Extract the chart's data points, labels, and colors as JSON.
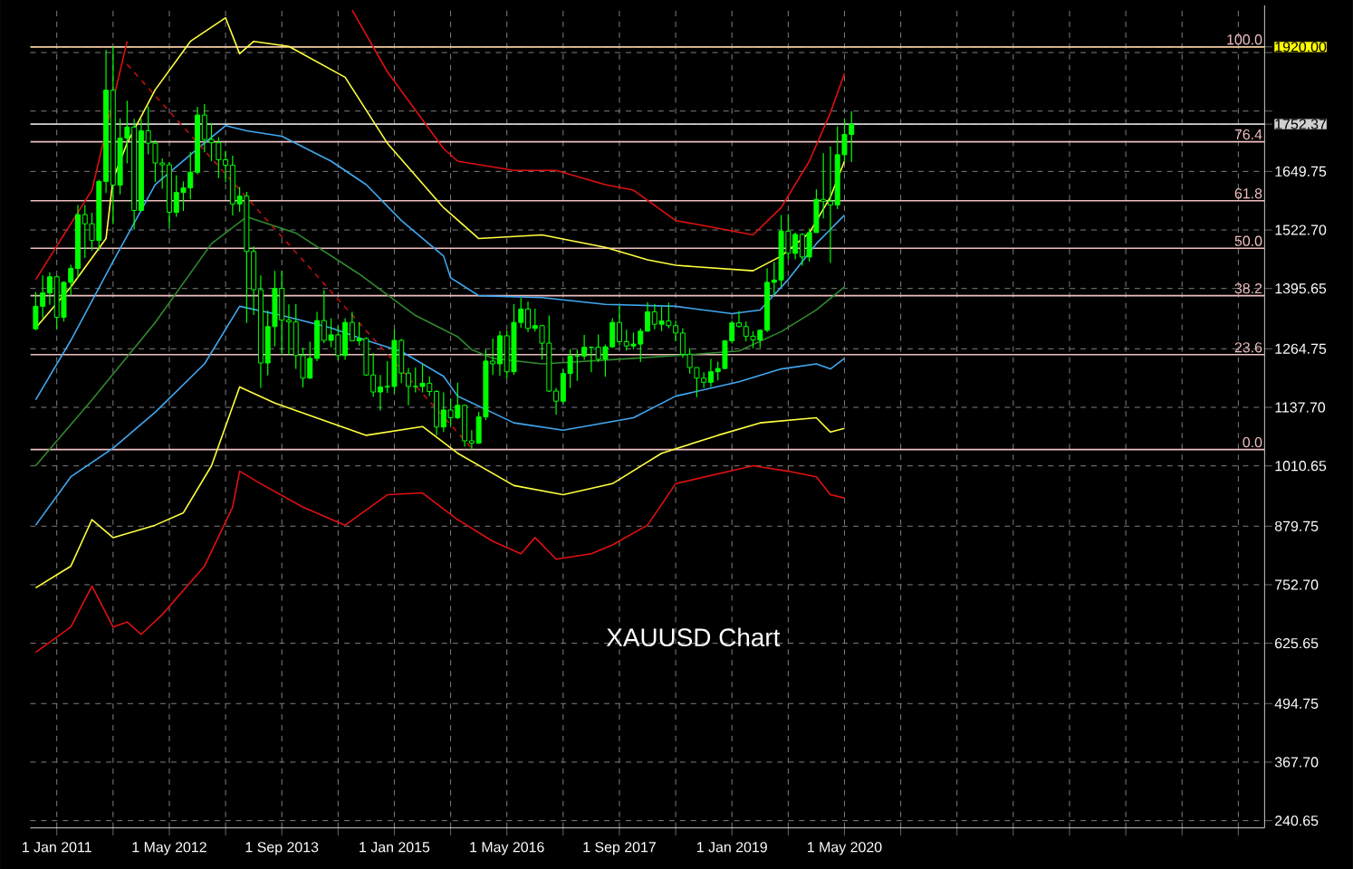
{
  "chart_data": {
    "type": "candlestick",
    "color": "#00ff00",
    "grid": true,
    "annotations": [
      "XAUUSD Chart",
      {
        "text": "100.0",
        "x": "2025-04-23",
        "y": 1920
      },
      {
        "text": "76.4",
        "x": "2025-04-23",
        "y": 1714
      },
      {
        "text": "61.8",
        "x": "2025-04-23",
        "y": 1586
      },
      {
        "text": "50.0",
        "x": "2025-04-23",
        "y": 1483
      },
      {
        "text": "38.2",
        "x": "2025-04-23",
        "y": 1380
      },
      {
        "text": "23.6",
        "x": "2025-04-23",
        "y": 1252
      },
      {
        "text": "0.0",
        "x": "2025-04-23",
        "y": 1046
      }
    ],
    "xlim": [
      "2010-09-08",
      "2025-04-23"
    ],
    "ylim": [
      225,
      2010
    ],
    "xticks": [
      {
        "value": "2011-01-01",
        "label": "1 Jan 2011"
      },
      {
        "value": "2011-09-01",
        "label": null
      },
      {
        "value": "2012-05-01",
        "label": "1 May 2012"
      },
      {
        "value": "2013-01-01",
        "label": null
      },
      {
        "value": "2013-09-01",
        "label": "1 Sep 2013"
      },
      {
        "value": "2014-05-01",
        "label": null
      },
      {
        "value": "2015-01-01",
        "label": "1 Jan 2015"
      },
      {
        "value": "2015-09-01",
        "label": null
      },
      {
        "value": "2016-05-01",
        "label": "1 May 2016"
      },
      {
        "value": "2017-01-01",
        "label": null
      },
      {
        "value": "2017-09-01",
        "label": "1 Sep 2017"
      },
      {
        "value": "2018-05-01",
        "label": null
      },
      {
        "value": "2019-01-01",
        "label": "1 Jan 2019"
      },
      {
        "value": "2019-09-01",
        "label": null
      },
      {
        "value": "2020-05-01",
        "label": "1 May 2020"
      },
      {
        "value": "2021-01-01",
        "label": null
      },
      {
        "value": "2021-09-01",
        "label": null
      },
      {
        "value": "2022-05-01",
        "label": null
      },
      {
        "value": "2023-01-01",
        "label": null
      },
      {
        "value": "2023-09-01",
        "label": null
      },
      {
        "value": "2024-05-01",
        "label": null
      },
      {
        "value": "2025-01-01",
        "label": null
      }
    ],
    "yticks": [
      {
        "value": 240.65,
        "label": "240.65"
      },
      {
        "value": 367.7,
        "label": "367.70"
      },
      {
        "value": 494.75,
        "label": "494.75"
      },
      {
        "value": 625.65,
        "label": "625.65"
      },
      {
        "value": 752.7,
        "label": "752.70"
      },
      {
        "value": 879.75,
        "label": "879.75"
      },
      {
        "value": 1010.65,
        "label": "1010.65"
      },
      {
        "value": 1137.7,
        "label": "1137.70"
      },
      {
        "value": 1264.75,
        "label": "1264.75"
      },
      {
        "value": 1395.65,
        "label": "1395.65"
      },
      {
        "value": 1522.7,
        "label": "1522.70"
      },
      {
        "value": 1649.75,
        "label": "1649.75"
      },
      {
        "value": 1752.37,
        "label": "1752.37"
      },
      {
        "value": 1780.65,
        "label": null
      },
      {
        "value": 1907.7,
        "label": null
      },
      {
        "value": 1920,
        "label": "1920.00"
      }
    ],
    "ref_lines": [
      {
        "axis": "y",
        "value": 1920,
        "label": null,
        "color": "#ffff00"
      },
      {
        "axis": "y",
        "value": 1752.37,
        "label": null,
        "color": "#d0d0d0"
      },
      {
        "axis": "y",
        "value": 1920,
        "color": "#f0c0c0"
      },
      {
        "axis": "y",
        "value": 1714,
        "color": "#f0c0c0"
      },
      {
        "axis": "y",
        "value": 1586,
        "color": "#f0c0c0"
      },
      {
        "axis": "y",
        "value": 1483,
        "color": "#f0c0c0"
      },
      {
        "axis": "y",
        "value": 1380,
        "color": "#f0c0c0"
      },
      {
        "axis": "y",
        "value": 1252,
        "color": "#f0c0c0"
      },
      {
        "axis": "y",
        "value": 1046,
        "color": "#f0c0c0"
      }
    ],
    "x": [
      "2010-10",
      "2010-11",
      "2010-12",
      "2011-01",
      "2011-02",
      "2011-03",
      "2011-04",
      "2011-05",
      "2011-06",
      "2011-07",
      "2011-08",
      "2011-09",
      "2011-10",
      "2011-11",
      "2011-12",
      "2012-01",
      "2012-02",
      "2012-03",
      "2012-04",
      "2012-05",
      "2012-06",
      "2012-07",
      "2012-08",
      "2012-09",
      "2012-10",
      "2012-11",
      "2012-12",
      "2013-01",
      "2013-02",
      "2013-03",
      "2013-04",
      "2013-05",
      "2013-06",
      "2013-07",
      "2013-08",
      "2013-09",
      "2013-10",
      "2013-11",
      "2013-12",
      "2014-01",
      "2014-02",
      "2014-03",
      "2014-04",
      "2014-05",
      "2014-06",
      "2014-07",
      "2014-08",
      "2014-09",
      "2014-10",
      "2014-11",
      "2014-12",
      "2015-01",
      "2015-02",
      "2015-03",
      "2015-04",
      "2015-05",
      "2015-06",
      "2015-07",
      "2015-08",
      "2015-09",
      "2015-10",
      "2015-11",
      "2015-12",
      "2016-01",
      "2016-02",
      "2016-03",
      "2016-04",
      "2016-05",
      "2016-06",
      "2016-07",
      "2016-08",
      "2016-09",
      "2016-10",
      "2016-11",
      "2016-12",
      "2017-01",
      "2017-02",
      "2017-03",
      "2017-04",
      "2017-05",
      "2017-06",
      "2017-07",
      "2017-08",
      "2017-09",
      "2017-10",
      "2017-11",
      "2017-12",
      "2018-01",
      "2018-02",
      "2018-03",
      "2018-04",
      "2018-05",
      "2018-06",
      "2018-07",
      "2018-08",
      "2018-09",
      "2018-10",
      "2018-11",
      "2018-12",
      "2019-01",
      "2019-02",
      "2019-03",
      "2019-04",
      "2019-05",
      "2019-06",
      "2019-07",
      "2019-08",
      "2019-09",
      "2019-10",
      "2019-11",
      "2019-12",
      "2020-01",
      "2020-02",
      "2020-03",
      "2020-04",
      "2020-05",
      "2020-06"
    ],
    "ohlc": [
      [
        1308,
        1388,
        1305,
        1357
      ],
      [
        1357,
        1424,
        1331,
        1386
      ],
      [
        1386,
        1431,
        1360,
        1421
      ],
      [
        1421,
        1424,
        1308,
        1333
      ],
      [
        1333,
        1411,
        1324,
        1409
      ],
      [
        1409,
        1447,
        1381,
        1439
      ],
      [
        1439,
        1577,
        1418,
        1556
      ],
      [
        1556,
        1577,
        1462,
        1536
      ],
      [
        1536,
        1560,
        1478,
        1500
      ],
      [
        1500,
        1632,
        1478,
        1628
      ],
      [
        1628,
        1913,
        1603,
        1826
      ],
      [
        1826,
        1921,
        1535,
        1620
      ],
      [
        1620,
        1765,
        1600,
        1722
      ],
      [
        1722,
        1803,
        1667,
        1746
      ],
      [
        1746,
        1764,
        1523,
        1565
      ],
      [
        1565,
        1764,
        1563,
        1738
      ],
      [
        1738,
        1791,
        1687,
        1711
      ],
      [
        1711,
        1718,
        1627,
        1668
      ],
      [
        1668,
        1678,
        1612,
        1664
      ],
      [
        1664,
        1670,
        1527,
        1561
      ],
      [
        1561,
        1641,
        1551,
        1604
      ],
      [
        1604,
        1628,
        1564,
        1614
      ],
      [
        1614,
        1692,
        1589,
        1648
      ],
      [
        1648,
        1790,
        1643,
        1772
      ],
      [
        1772,
        1796,
        1691,
        1719
      ],
      [
        1719,
        1755,
        1672,
        1712
      ],
      [
        1712,
        1724,
        1635,
        1675
      ],
      [
        1675,
        1694,
        1626,
        1663
      ],
      [
        1663,
        1684,
        1554,
        1579
      ],
      [
        1579,
        1616,
        1562,
        1596
      ],
      [
        1596,
        1605,
        1321,
        1476
      ],
      [
        1476,
        1487,
        1338,
        1393
      ],
      [
        1393,
        1424,
        1180,
        1234
      ],
      [
        1234,
        1348,
        1207,
        1313
      ],
      [
        1313,
        1434,
        1270,
        1396
      ],
      [
        1396,
        1434,
        1251,
        1327
      ],
      [
        1327,
        1361,
        1251,
        1323
      ],
      [
        1323,
        1362,
        1221,
        1250
      ],
      [
        1250,
        1267,
        1181,
        1201
      ],
      [
        1201,
        1280,
        1200,
        1244
      ],
      [
        1244,
        1345,
        1238,
        1326
      ],
      [
        1326,
        1392,
        1277,
        1283
      ],
      [
        1283,
        1331,
        1268,
        1295
      ],
      [
        1295,
        1315,
        1240,
        1250
      ],
      [
        1250,
        1331,
        1241,
        1322
      ],
      [
        1322,
        1345,
        1282,
        1282
      ],
      [
        1282,
        1322,
        1272,
        1287
      ],
      [
        1287,
        1290,
        1206,
        1208
      ],
      [
        1208,
        1255,
        1161,
        1171
      ],
      [
        1171,
        1208,
        1131,
        1182
      ],
      [
        1182,
        1238,
        1169,
        1183
      ],
      [
        1183,
        1307,
        1167,
        1283
      ],
      [
        1283,
        1286,
        1190,
        1212
      ],
      [
        1212,
        1223,
        1142,
        1183
      ],
      [
        1183,
        1224,
        1170,
        1183
      ],
      [
        1183,
        1232,
        1170,
        1190
      ],
      [
        1190,
        1205,
        1162,
        1172
      ],
      [
        1172,
        1175,
        1077,
        1095
      ],
      [
        1095,
        1170,
        1084,
        1132
      ],
      [
        1132,
        1157,
        1098,
        1115
      ],
      [
        1115,
        1191,
        1112,
        1142
      ],
      [
        1142,
        1143,
        1052,
        1065
      ],
      [
        1065,
        1088,
        1046,
        1060
      ],
      [
        1060,
        1128,
        1058,
        1117
      ],
      [
        1117,
        1263,
        1110,
        1238
      ],
      [
        1238,
        1287,
        1208,
        1232
      ],
      [
        1232,
        1303,
        1206,
        1293
      ],
      [
        1293,
        1304,
        1200,
        1215
      ],
      [
        1215,
        1362,
        1208,
        1322
      ],
      [
        1322,
        1375,
        1310,
        1351
      ],
      [
        1351,
        1367,
        1301,
        1309
      ],
      [
        1309,
        1352,
        1302,
        1315
      ],
      [
        1315,
        1317,
        1241,
        1277
      ],
      [
        1277,
        1337,
        1171,
        1173
      ],
      [
        1173,
        1180,
        1122,
        1151
      ],
      [
        1151,
        1220,
        1146,
        1211
      ],
      [
        1211,
        1264,
        1180,
        1249
      ],
      [
        1249,
        1263,
        1195,
        1249
      ],
      [
        1249,
        1295,
        1241,
        1268
      ],
      [
        1268,
        1270,
        1214,
        1268
      ],
      [
        1268,
        1296,
        1236,
        1242
      ],
      [
        1242,
        1274,
        1204,
        1269
      ],
      [
        1269,
        1331,
        1267,
        1322
      ],
      [
        1322,
        1357,
        1272,
        1280
      ],
      [
        1280,
        1306,
        1261,
        1271
      ],
      [
        1271,
        1300,
        1264,
        1275
      ],
      [
        1275,
        1309,
        1236,
        1303
      ],
      [
        1303,
        1366,
        1302,
        1345
      ],
      [
        1345,
        1362,
        1307,
        1318
      ],
      [
        1318,
        1356,
        1303,
        1325
      ],
      [
        1325,
        1365,
        1309,
        1315
      ],
      [
        1315,
        1326,
        1281,
        1299
      ],
      [
        1299,
        1309,
        1245,
        1253
      ],
      [
        1253,
        1266,
        1211,
        1224
      ],
      [
        1224,
        1224,
        1160,
        1201
      ],
      [
        1201,
        1214,
        1180,
        1192
      ],
      [
        1192,
        1243,
        1182,
        1215
      ],
      [
        1215,
        1237,
        1196,
        1222
      ],
      [
        1222,
        1284,
        1221,
        1282
      ],
      [
        1282,
        1326,
        1276,
        1321
      ],
      [
        1321,
        1347,
        1311,
        1313
      ],
      [
        1313,
        1324,
        1281,
        1292
      ],
      [
        1292,
        1303,
        1266,
        1284
      ],
      [
        1284,
        1306,
        1267,
        1305
      ],
      [
        1305,
        1439,
        1301,
        1409
      ],
      [
        1409,
        1453,
        1382,
        1414
      ],
      [
        1414,
        1555,
        1400,
        1520
      ],
      [
        1520,
        1557,
        1459,
        1472
      ],
      [
        1472,
        1517,
        1459,
        1513
      ],
      [
        1513,
        1516,
        1445,
        1464
      ],
      [
        1464,
        1526,
        1454,
        1517
      ],
      [
        1517,
        1611,
        1517,
        1589
      ],
      [
        1589,
        1689,
        1548,
        1585
      ],
      [
        1585,
        1704,
        1451,
        1577
      ],
      [
        1577,
        1747,
        1568,
        1686
      ],
      [
        1686,
        1765,
        1670,
        1730
      ],
      [
        1730,
        1780,
        1670,
        1752.37
      ]
    ],
    "series": [
      {
        "type": "line",
        "color": "#e01010",
        "x": [
          "2010-10",
          "2011-06",
          "2011-11",
          "2012-01",
          "2014-06",
          "2014-07",
          "2014-12",
          "2015-08",
          "2015-10",
          "2016-06",
          "2016-12",
          "2017-07",
          "2017-11",
          "2018-05",
          "2018-09",
          "2019-04",
          "2019-08",
          "2019-12",
          "2020-03",
          "2020-05"
        ],
        "values": [
          1415,
          1609,
          1932,
          null,
          null,
          2000,
          1866,
          1699,
          1672,
          1652,
          1652,
          1621,
          1609,
          1543,
          1532,
          1512,
          1571,
          1672,
          1777,
          1862
        ]
      },
      {
        "type": "line",
        "color": "#e01010",
        "x": [
          "2010-10",
          "2011-03",
          "2011-06",
          "2011-09",
          "2011-11",
          "2012-01",
          "2012-04",
          "2012-10",
          "2013-02",
          "2013-03",
          "2013-06",
          "2013-12",
          "2014-06",
          "2014-12",
          "2015-05",
          "2015-10",
          "2016-03",
          "2016-07",
          "2016-09",
          "2016-12",
          "2017-05",
          "2017-08",
          "2018-01",
          "2018-05",
          "2019-04",
          "2019-09",
          "2020-01",
          "2020-03",
          "2020-05"
        ],
        "values": [
          606,
          661,
          750,
          661,
          672,
          645,
          688,
          793,
          921,
          999,
          972,
          921,
          882,
          948,
          952,
          894,
          847,
          820,
          855,
          808,
          820,
          839,
          882,
          972,
          1011,
          999,
          987,
          948,
          941
        ]
      },
      {
        "type": "line",
        "color": "#ffff40",
        "x": [
          "2010-10",
          "2011-03",
          "2011-08",
          "2011-09",
          "2011-11",
          "2012-03",
          "2012-08",
          "2013-01",
          "2013-03",
          "2013-05",
          "2013-10",
          "2014-06",
          "2014-12",
          "2015-08",
          "2016-01",
          "2016-10",
          "2017-07",
          "2018-01",
          "2018-05",
          "2019-04",
          "2019-08",
          "2019-12",
          "2020-03",
          "2020-05"
        ],
        "values": [
          1310,
          1399,
          1504,
          1633,
          1711,
          1827,
          1932,
          1983,
          1905,
          1932,
          1921,
          1854,
          1711,
          1571,
          1504,
          1512,
          1485,
          1458,
          1446,
          1434,
          1466,
          1516,
          1594,
          1672
        ]
      },
      {
        "type": "line",
        "color": "#ffff40",
        "x": [
          "2010-10",
          "2011-03",
          "2011-06",
          "2011-09",
          "2012-03",
          "2012-07",
          "2012-11",
          "2013-03",
          "2013-08",
          "2014-04",
          "2014-09",
          "2015-05",
          "2015-10",
          "2016-06",
          "2017-01",
          "2017-08",
          "2018-03",
          "2018-11",
          "2019-05",
          "2020-01",
          "2020-03",
          "2020-05"
        ],
        "values": [
          746,
          793,
          894,
          855,
          882,
          909,
          1011,
          1182,
          1147,
          1104,
          1077,
          1096,
          1038,
          968,
          948,
          972,
          1038,
          1077,
          1104,
          1115,
          1084,
          1092
        ]
      },
      {
        "type": "line",
        "color": "#40a8f0",
        "x": [
          "2010-10",
          "2011-03",
          "2011-09",
          "2012-03",
          "2012-09",
          "2013-01",
          "2013-04",
          "2013-09",
          "2014-04",
          "2014-09",
          "2015-02",
          "2015-08",
          "2015-09",
          "2016-01",
          "2016-10",
          "2017-07",
          "2018-05",
          "2019-01",
          "2019-05",
          "2019-09",
          "2020-01",
          "2020-05"
        ],
        "values": [
          1154,
          1283,
          1454,
          1621,
          1699,
          1749,
          1738,
          1726,
          1672,
          1621,
          1543,
          1466,
          1419,
          1380,
          1376,
          1361,
          1357,
          1341,
          1349,
          1415,
          1493,
          1555
        ]
      },
      {
        "type": "line",
        "color": "#40a8f0",
        "x": [
          "2010-10",
          "2011-03",
          "2011-09",
          "2012-03",
          "2012-10",
          "2013-03",
          "2013-09",
          "2014-04",
          "2014-09",
          "2015-02",
          "2015-08",
          "2015-10",
          "2016-06",
          "2017-01",
          "2017-11",
          "2018-05",
          "2019-02",
          "2019-08",
          "2020-01",
          "2020-03",
          "2020-05"
        ],
        "values": [
          882,
          987,
          1049,
          1127,
          1232,
          1357,
          1337,
          1310,
          1283,
          1259,
          1205,
          1162,
          1104,
          1088,
          1115,
          1162,
          1193,
          1221,
          1232,
          1221,
          1244
        ]
      },
      {
        "type": "line",
        "color": "#2f8a2f",
        "x": [
          "2010-10",
          "2011-06",
          "2012-03",
          "2012-11",
          "2013-04",
          "2013-11",
          "2014-08",
          "2015-04",
          "2015-10",
          "2015-12",
          "2016-03",
          "2016-10",
          "2017-11",
          "2018-07",
          "2019-02",
          "2019-08",
          "2020-01",
          "2020-05"
        ],
        "values": [
          1011,
          1154,
          1322,
          1493,
          1551,
          1516,
          1427,
          1337,
          1291,
          1263,
          1244,
          1232,
          1244,
          1252,
          1260,
          1302,
          1349,
          1399
        ]
      },
      {
        "type": "line",
        "color": "#c01010",
        "line_style": "dashed",
        "x": [
          "2011-11",
          "2015-12"
        ],
        "values": [
          1882,
          1049
        ]
      }
    ]
  }
}
